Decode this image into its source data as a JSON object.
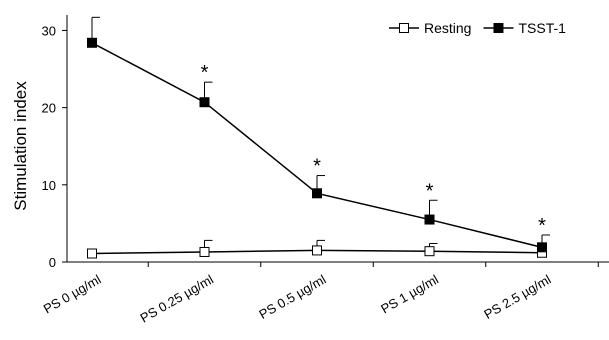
{
  "chart_data": {
    "type": "line",
    "ylabel": "Stimulation index",
    "xlabel": "",
    "ylim": [
      0,
      32
    ],
    "yticks": [
      0,
      10,
      20,
      30
    ],
    "categories": [
      "PS 0 µg/ml",
      "PS 0.25 µg/ml",
      "PS 0.5 µg/ml",
      "PS 1 µg/ml",
      "PS 2.5 µg/ml"
    ],
    "legend_position": "top-right",
    "series": [
      {
        "name": "Resting",
        "marker": "open-square",
        "values": [
          1.1,
          1.3,
          1.5,
          1.4,
          1.2
        ],
        "error_plus": [
          0.0,
          1.5,
          1.3,
          1.0,
          0.0
        ],
        "color": "#000000"
      },
      {
        "name": "TSST-1",
        "marker": "filled-square",
        "values": [
          28.4,
          20.7,
          8.9,
          5.5,
          1.9
        ],
        "error_plus": [
          3.3,
          2.6,
          2.3,
          2.5,
          1.6
        ],
        "color": "#000000"
      }
    ],
    "annotations": [
      {
        "category_index": 1,
        "text": "*"
      },
      {
        "category_index": 2,
        "text": "*"
      },
      {
        "category_index": 3,
        "text": "*"
      },
      {
        "category_index": 4,
        "text": "*"
      }
    ]
  }
}
